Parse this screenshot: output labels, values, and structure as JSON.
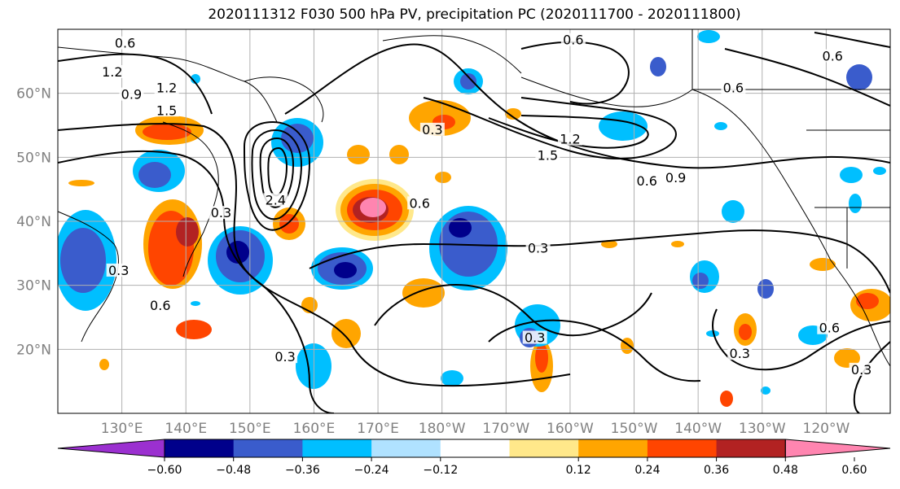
{
  "title": "2020111312 F030 500 hPa PV, precipitation PC (2020111700 - 2020111800)",
  "map": {
    "projection": "cylindrical",
    "lon_range": [
      120,
      250
    ],
    "lat_range": [
      10,
      70
    ],
    "gridlines": true,
    "lat_ticks": [
      {
        "value": 20,
        "label": "20°N"
      },
      {
        "value": 30,
        "label": "30°N"
      },
      {
        "value": 40,
        "label": "40°N"
      },
      {
        "value": 50,
        "label": "50°N"
      },
      {
        "value": 60,
        "label": "60°N"
      }
    ],
    "lon_ticks": [
      {
        "value": 130,
        "label": "130°E"
      },
      {
        "value": 140,
        "label": "140°E"
      },
      {
        "value": 150,
        "label": "150°E"
      },
      {
        "value": 160,
        "label": "160°E"
      },
      {
        "value": 170,
        "label": "170°E"
      },
      {
        "value": 180,
        "label": "180°W"
      },
      {
        "value": 190,
        "label": "170°W"
      },
      {
        "value": 200,
        "label": "160°W"
      },
      {
        "value": 210,
        "label": "150°W"
      },
      {
        "value": 220,
        "label": "140°W"
      },
      {
        "value": 230,
        "label": "130°W"
      },
      {
        "value": 240,
        "label": "120°W"
      }
    ],
    "contour_labels": [
      {
        "text": "0.6",
        "lon": 130.5,
        "lat": 67.5
      },
      {
        "text": "1.2",
        "lon": 128.5,
        "lat": 63.0
      },
      {
        "text": "0.9",
        "lon": 131.5,
        "lat": 59.5
      },
      {
        "text": "1.2",
        "lon": 137.0,
        "lat": 60.5
      },
      {
        "text": "1.5",
        "lon": 137.0,
        "lat": 57.0
      },
      {
        "text": "2.4",
        "lon": 154.0,
        "lat": 43.0
      },
      {
        "text": "0.3",
        "lon": 145.5,
        "lat": 41.0
      },
      {
        "text": "0.3",
        "lon": 129.5,
        "lat": 32.0
      },
      {
        "text": "0.6",
        "lon": 136.0,
        "lat": 26.5
      },
      {
        "text": "0.6",
        "lon": 176.5,
        "lat": 42.5
      },
      {
        "text": "0.3",
        "lon": 195.0,
        "lat": 35.5
      },
      {
        "text": "0.6",
        "lon": 212.0,
        "lat": 46.0
      },
      {
        "text": "0.9",
        "lon": 216.5,
        "lat": 46.5
      },
      {
        "text": "1.2",
        "lon": 200.0,
        "lat": 52.5
      },
      {
        "text": "1.5",
        "lon": 196.5,
        "lat": 50.0
      },
      {
        "text": "0.6",
        "lon": 225.5,
        "lat": 60.5
      },
      {
        "text": "0.6",
        "lon": 200.5,
        "lat": 68.0
      },
      {
        "text": "0.6",
        "lon": 241.0,
        "lat": 65.5
      },
      {
        "text": "0.3",
        "lon": 226.5,
        "lat": 19.0
      },
      {
        "text": "0.6",
        "lon": 240.5,
        "lat": 23.0
      },
      {
        "text": "0.3",
        "lon": 245.5,
        "lat": 16.5
      },
      {
        "text": "0.3",
        "lon": 178.5,
        "lat": 54.0
      },
      {
        "text": "0.3",
        "lon": 155.5,
        "lat": 18.5
      },
      {
        "text": "0.3",
        "lon": 194.5,
        "lat": 21.5
      }
    ]
  },
  "colorbar": {
    "tick_labels": [
      "−0.60",
      "−0.48",
      "−0.36",
      "−0.24",
      "−0.12",
      "0.12",
      "0.24",
      "0.36",
      "0.48",
      "0.60"
    ],
    "colors": {
      "lt_neg060": "#9b30d0",
      "neg060": "#00008b",
      "neg048": "#3a5ccc",
      "neg036": "#00bfff",
      "neg024": "#b0e2ff",
      "neutral": "#ffffff",
      "pos012": "#ffe88a",
      "pos024": "#ffa500",
      "pos036": "#ff4500",
      "pos048": "#b22222",
      "gt060": "#ff85b0"
    }
  }
}
